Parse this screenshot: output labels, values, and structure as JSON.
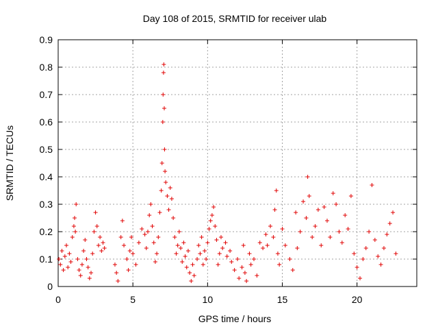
{
  "chart_data": {
    "type": "scatter",
    "title": "Day 108 of 2015, SRMTID for receiver ulab",
    "xlabel": "GPS time / hours",
    "ylabel": "SRMTID / TECUs",
    "xlim": [
      0,
      24
    ],
    "ylim": [
      0,
      0.9
    ],
    "x_ticks": [
      "0",
      "5",
      "10",
      "15",
      "20"
    ],
    "x_tick_values": [
      0,
      5,
      10,
      15,
      20
    ],
    "y_ticks": [
      "0",
      "0.1",
      "0.2",
      "0.3",
      "0.4",
      "0.5",
      "0.6",
      "0.7",
      "0.8",
      "0.9"
    ],
    "y_tick_values": [
      0,
      0.1,
      0.2,
      0.3,
      0.4,
      0.5,
      0.6,
      0.7,
      0.8,
      0.9
    ],
    "grid": true,
    "marker": "+",
    "series_color": "#e00000",
    "series": [
      {
        "name": "SRMTID",
        "points": [
          [
            0.05,
            0.1
          ],
          [
            0.15,
            0.08
          ],
          [
            0.25,
            0.13
          ],
          [
            0.35,
            0.06
          ],
          [
            0.45,
            0.11
          ],
          [
            0.55,
            0.15
          ],
          [
            0.65,
            0.07
          ],
          [
            0.75,
            0.12
          ],
          [
            0.85,
            0.09
          ],
          [
            0.95,
            0.18
          ],
          [
            1.05,
            0.22
          ],
          [
            1.1,
            0.25
          ],
          [
            1.15,
            0.2
          ],
          [
            1.2,
            0.3
          ],
          [
            1.3,
            0.1
          ],
          [
            1.4,
            0.06
          ],
          [
            1.5,
            0.04
          ],
          [
            1.6,
            0.08
          ],
          [
            1.7,
            0.13
          ],
          [
            1.8,
            0.17
          ],
          [
            1.9,
            0.1
          ],
          [
            2.0,
            0.07
          ],
          [
            2.1,
            0.03
          ],
          [
            2.2,
            0.05
          ],
          [
            2.3,
            0.12
          ],
          [
            2.4,
            0.2
          ],
          [
            2.5,
            0.27
          ],
          [
            2.6,
            0.22
          ],
          [
            2.7,
            0.15
          ],
          [
            2.8,
            0.18
          ],
          [
            2.9,
            0.13
          ],
          [
            3.0,
            0.16
          ],
          [
            3.1,
            0.14
          ],
          [
            3.8,
            0.08
          ],
          [
            3.9,
            0.05
          ],
          [
            4.0,
            0.02
          ],
          [
            4.2,
            0.18
          ],
          [
            4.3,
            0.24
          ],
          [
            4.4,
            0.15
          ],
          [
            4.6,
            0.1
          ],
          [
            4.7,
            0.06
          ],
          [
            4.8,
            0.13
          ],
          [
            4.9,
            0.18
          ],
          [
            5.0,
            0.12
          ],
          [
            5.2,
            0.08
          ],
          [
            5.4,
            0.16
          ],
          [
            5.6,
            0.21
          ],
          [
            5.8,
            0.19
          ],
          [
            5.9,
            0.14
          ],
          [
            6.0,
            0.2
          ],
          [
            6.1,
            0.26
          ],
          [
            6.2,
            0.3
          ],
          [
            6.3,
            0.22
          ],
          [
            6.4,
            0.16
          ],
          [
            6.5,
            0.09
          ],
          [
            6.6,
            0.12
          ],
          [
            6.7,
            0.18
          ],
          [
            6.8,
            0.27
          ],
          [
            6.9,
            0.35
          ],
          [
            6.95,
            0.45
          ],
          [
            7.0,
            0.6
          ],
          [
            7.02,
            0.7
          ],
          [
            7.05,
            0.78
          ],
          [
            7.07,
            0.81
          ],
          [
            7.1,
            0.65
          ],
          [
            7.12,
            0.5
          ],
          [
            7.15,
            0.42
          ],
          [
            7.2,
            0.38
          ],
          [
            7.3,
            0.33
          ],
          [
            7.4,
            0.28
          ],
          [
            7.5,
            0.36
          ],
          [
            7.6,
            0.32
          ],
          [
            7.7,
            0.25
          ],
          [
            7.8,
            0.18
          ],
          [
            7.9,
            0.12
          ],
          [
            8.0,
            0.15
          ],
          [
            8.1,
            0.2
          ],
          [
            8.2,
            0.14
          ],
          [
            8.3,
            0.09
          ],
          [
            8.4,
            0.16
          ],
          [
            8.5,
            0.11
          ],
          [
            8.6,
            0.07
          ],
          [
            8.7,
            0.13
          ],
          [
            8.8,
            0.05
          ],
          [
            8.9,
            0.02
          ],
          [
            9.0,
            0.08
          ],
          [
            9.1,
            0.04
          ],
          [
            9.3,
            0.1
          ],
          [
            9.4,
            0.15
          ],
          [
            9.5,
            0.12
          ],
          [
            9.6,
            0.18
          ],
          [
            9.7,
            0.08
          ],
          [
            9.8,
            0.13
          ],
          [
            9.9,
            0.1
          ],
          [
            10.0,
            0.16
          ],
          [
            10.1,
            0.21
          ],
          [
            10.2,
            0.24
          ],
          [
            10.3,
            0.26
          ],
          [
            10.4,
            0.29
          ],
          [
            10.5,
            0.22
          ],
          [
            10.6,
            0.17
          ],
          [
            10.7,
            0.08
          ],
          [
            10.8,
            0.12
          ],
          [
            10.9,
            0.18
          ],
          [
            11.0,
            0.14
          ],
          [
            11.2,
            0.16
          ],
          [
            11.3,
            0.11
          ],
          [
            11.5,
            0.13
          ],
          [
            11.6,
            0.09
          ],
          [
            11.8,
            0.06
          ],
          [
            12.0,
            0.1
          ],
          [
            12.1,
            0.03
          ],
          [
            12.3,
            0.07
          ],
          [
            12.4,
            0.15
          ],
          [
            12.5,
            0.05
          ],
          [
            12.6,
            0.02
          ],
          [
            12.8,
            0.12
          ],
          [
            12.9,
            0.08
          ],
          [
            13.1,
            0.1
          ],
          [
            13.3,
            0.04
          ],
          [
            13.5,
            0.16
          ],
          [
            13.7,
            0.14
          ],
          [
            13.9,
            0.19
          ],
          [
            14.0,
            0.15
          ],
          [
            14.2,
            0.22
          ],
          [
            14.4,
            0.18
          ],
          [
            14.5,
            0.28
          ],
          [
            14.6,
            0.35
          ],
          [
            14.7,
            0.12
          ],
          [
            14.8,
            0.08
          ],
          [
            15.0,
            0.21
          ],
          [
            15.2,
            0.15
          ],
          [
            15.5,
            0.1
          ],
          [
            15.7,
            0.06
          ],
          [
            15.9,
            0.27
          ],
          [
            16.0,
            0.14
          ],
          [
            16.2,
            0.2
          ],
          [
            16.4,
            0.31
          ],
          [
            16.6,
            0.25
          ],
          [
            16.7,
            0.4
          ],
          [
            16.8,
            0.33
          ],
          [
            17.0,
            0.18
          ],
          [
            17.2,
            0.22
          ],
          [
            17.4,
            0.28
          ],
          [
            17.6,
            0.15
          ],
          [
            17.8,
            0.29
          ],
          [
            18.0,
            0.24
          ],
          [
            18.2,
            0.18
          ],
          [
            18.4,
            0.34
          ],
          [
            18.6,
            0.3
          ],
          [
            18.8,
            0.2
          ],
          [
            19.0,
            0.16
          ],
          [
            19.2,
            0.26
          ],
          [
            19.4,
            0.21
          ],
          [
            19.6,
            0.33
          ],
          [
            19.8,
            0.12
          ],
          [
            20.0,
            0.07
          ],
          [
            20.2,
            0.03
          ],
          [
            20.4,
            0.1
          ],
          [
            20.6,
            0.14
          ],
          [
            20.8,
            0.2
          ],
          [
            21.0,
            0.37
          ],
          [
            21.2,
            0.17
          ],
          [
            21.4,
            0.11
          ],
          [
            21.6,
            0.08
          ],
          [
            21.8,
            0.14
          ],
          [
            22.0,
            0.19
          ],
          [
            22.2,
            0.23
          ],
          [
            22.4,
            0.27
          ],
          [
            22.6,
            0.12
          ]
        ]
      }
    ]
  }
}
